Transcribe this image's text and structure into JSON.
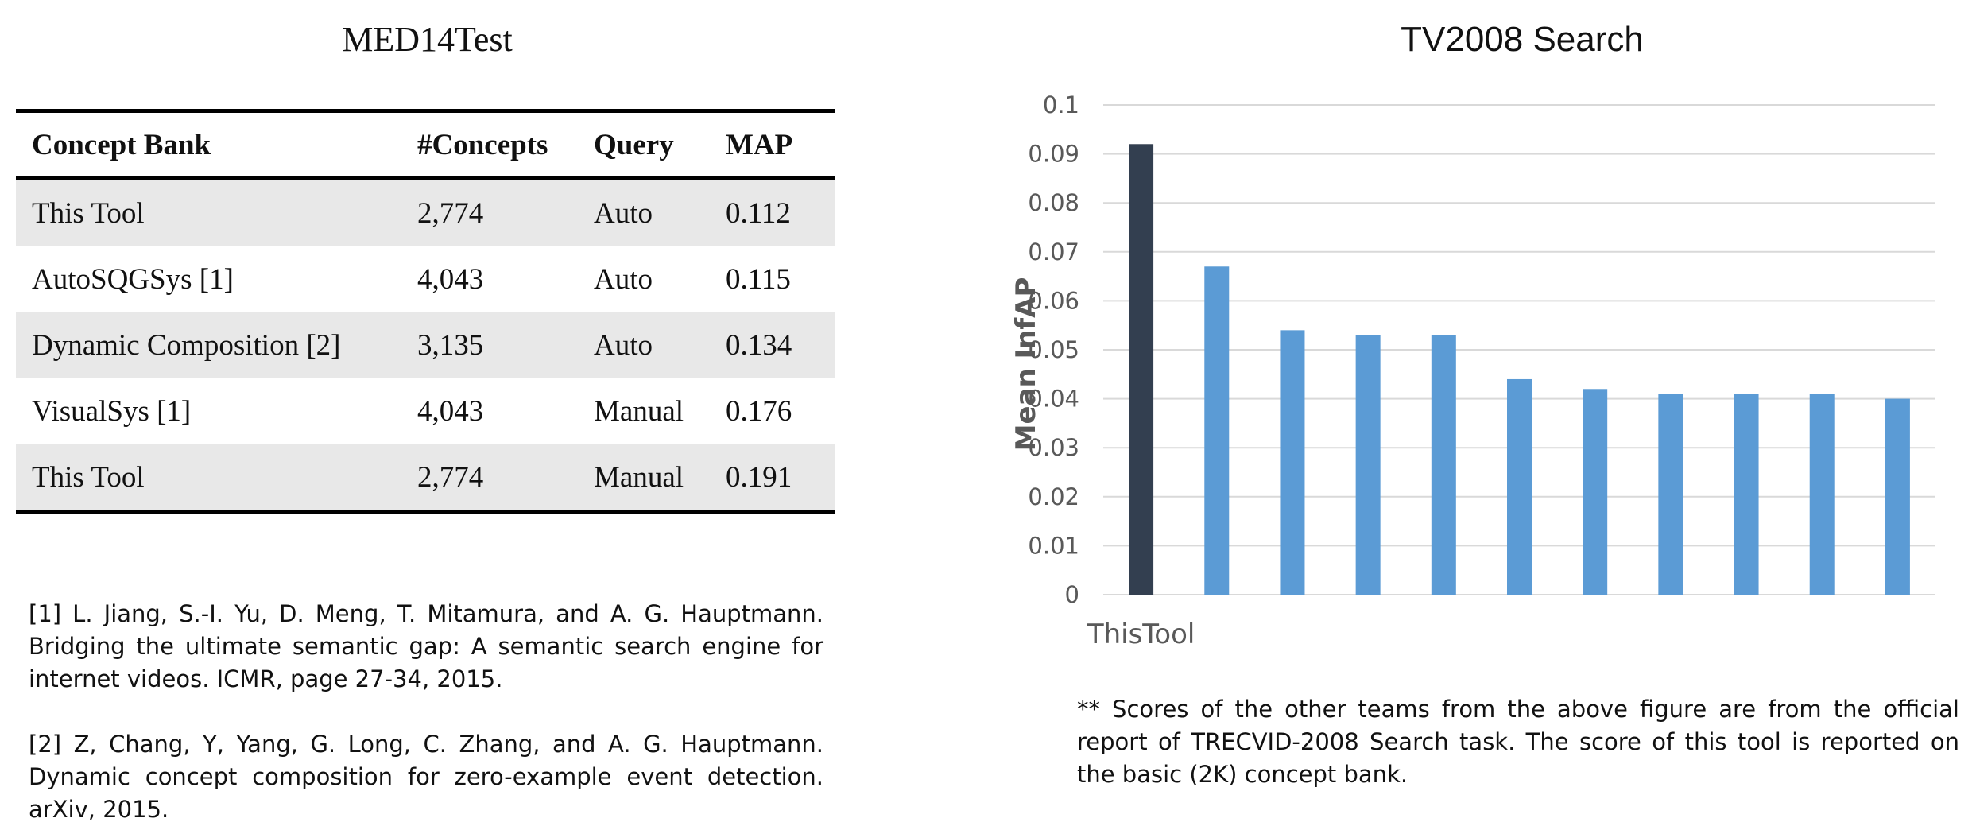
{
  "left": {
    "title": "MED14Test",
    "table": {
      "headers": [
        "Concept Bank",
        "#Concepts",
        "Query",
        "MAP"
      ],
      "rows": [
        [
          "This Tool",
          "2,774",
          "Auto",
          "0.112"
        ],
        [
          "AutoSQGSys [1]",
          "4,043",
          "Auto",
          "0.115"
        ],
        [
          "Dynamic Composition [2]",
          "3,135",
          "Auto",
          "0.134"
        ],
        [
          "VisualSys [1]",
          "4,043",
          "Manual",
          "0.176"
        ],
        [
          "This Tool",
          "2,774",
          "Manual",
          "0.191"
        ]
      ]
    },
    "references": [
      "[1] L. Jiang, S.-I. Yu, D. Meng, T. Mitamura, and A. G. Hauptmann. Bridging the ultimate semantic gap: A semantic search engine for internet videos. ICMR, page 27-34, 2015.",
      "[2] Z, Chang, Y, Yang, G. Long, C. Zhang, and A. G. Hauptmann. Dynamic concept composition for zero-example event detection. arXiv, 2015."
    ]
  },
  "right": {
    "note": "** Scores of the other teams from the above figure are from the official report of TRECVID-2008 Search task. The score of this tool is reported on the basic (2K) concept bank."
  },
  "chart_data": {
    "type": "bar",
    "title": "TV2008 Search",
    "xlabel": "",
    "ylabel": "Mean InfAP",
    "categories": [
      "ThisTool",
      "",
      "",
      "",
      "",
      "",
      "",
      "",
      "",
      "",
      ""
    ],
    "values": [
      0.092,
      0.067,
      0.054,
      0.053,
      0.053,
      0.044,
      0.042,
      0.041,
      0.041,
      0.041,
      0.04
    ],
    "ylim": [
      0,
      0.1
    ],
    "yticks": [
      0,
      0.01,
      0.02,
      0.03,
      0.04,
      0.05,
      0.06,
      0.07,
      0.08,
      0.09,
      0.1
    ],
    "grid": true,
    "colors": {
      "highlight": "#333f50",
      "default": "#5b9bd5",
      "grid": "#d9d9d9",
      "tick_text": "#595959"
    }
  }
}
